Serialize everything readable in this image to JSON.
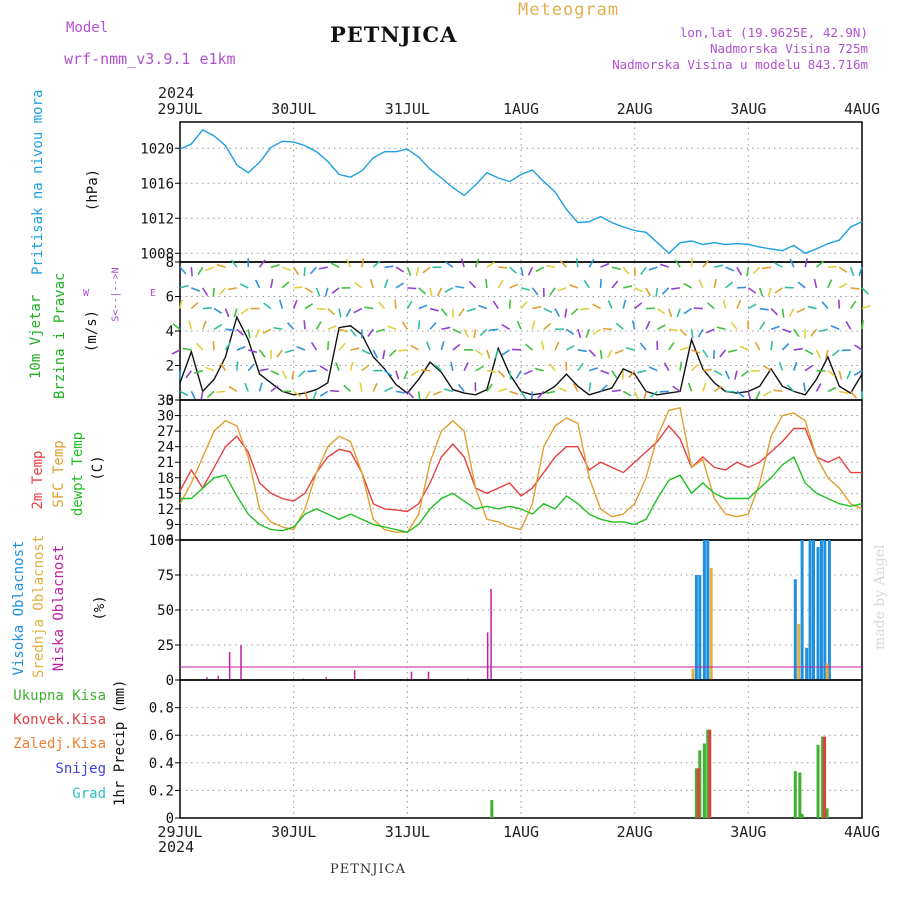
{
  "header": {
    "model_label": "Model",
    "model_name": "wrf-nmm_v3.9.1  e1km",
    "station": "PETNJICA",
    "meteogram": "Meteogram",
    "lonlat": "lon,lat (19.9625E, 42.9N)",
    "altitude": "Nadmorska Visina 725m",
    "model_altitude": "Nadmorska Visina u modelu 843.716m",
    "year_top": "2024",
    "year_bottom": "2024",
    "footer_station": "PETNJICA",
    "credit": "made by Angel"
  },
  "colors": {
    "pressure": "#1ea0e0",
    "temp2m": "#e84040",
    "sfc": "#e0a030",
    "dew": "#20c020",
    "high_cloud": "#1e90e0",
    "mid_cloud": "#e0b040",
    "low_cloud": "#c020a0",
    "total_precip": "#40b030",
    "conv_precip": "#e04040",
    "label_purple": "#b050d0",
    "label_orange": "#e0b050"
  },
  "x_axis": {
    "ticks": [
      "29JUL",
      "30JUL",
      "31JUL",
      "1AUG",
      "2AUG",
      "3AUG",
      "4AUG"
    ]
  },
  "panels": {
    "pressure": {
      "label": "Pritisak na nivou mora",
      "unit": "(hPa)"
    },
    "wind": {
      "label1": "10m Vjetar",
      "label2": "Brzina i Pravac",
      "unit": "(m/s)",
      "compass_w": "W",
      "compass_e": "E",
      "compass_ns": "S<--|-->N"
    },
    "temp": {
      "label_2m": "2m Temp",
      "label_sfc": "SFC Temp",
      "label_dew": "dewpt Temp",
      "unit": "(C)"
    },
    "cloud": {
      "label_high": "Visoka Oblacnost",
      "label_mid": "Srednja Oblacnost",
      "label_low": "Niska Oblacnost",
      "unit": "(%)"
    },
    "precip": {
      "legend": [
        "Ukupna Kisa",
        "Konvek.Kisa",
        "Zaledj.Kisa",
        "Snijeg",
        "Grad"
      ],
      "unit": "1hr Precip (mm)"
    }
  },
  "chart_data": [
    {
      "type": "line",
      "title": "Pritisak na nivou mora",
      "ylabel": "(hPa)",
      "ylim": [
        1007,
        1023
      ],
      "yticks": [
        1008,
        1012,
        1016,
        1020
      ],
      "x": [
        0,
        0.1,
        0.2,
        0.3,
        0.4,
        0.5,
        0.6,
        0.7,
        0.8,
        0.9,
        1.0,
        1.1,
        1.2,
        1.3,
        1.4,
        1.5,
        1.6,
        1.7,
        1.8,
        1.9,
        2.0,
        2.1,
        2.2,
        2.3,
        2.4,
        2.5,
        2.6,
        2.7,
        2.8,
        2.9,
        3.0,
        3.1,
        3.2,
        3.3,
        3.4,
        3.5,
        3.6,
        3.7,
        3.8,
        3.9,
        4.0,
        4.1,
        4.2,
        4.3,
        4.4,
        4.5,
        4.6,
        4.7,
        4.8,
        4.9,
        5.0,
        5.1,
        5.2,
        5.3,
        5.4,
        5.5,
        5.6,
        5.7,
        5.8,
        5.9,
        6.0
      ],
      "series": [
        {
          "values": [
            1019.9,
            1020.5,
            1022.1,
            1021.4,
            1020.3,
            1018.1,
            1017.2,
            1018.4,
            1020.1,
            1020.8,
            1020.7,
            1020.3,
            1019.6,
            1018.5,
            1017.0,
            1016.7,
            1017.4,
            1018.9,
            1019.6,
            1019.6,
            1019.9,
            1019.0,
            1017.6,
            1016.6,
            1015.5,
            1014.6,
            1015.8,
            1017.2,
            1016.6,
            1016.2,
            1017.0,
            1017.5,
            1016.2,
            1015.0,
            1013.0,
            1011.5,
            1011.6,
            1012.2,
            1011.5,
            1011.0,
            1010.6,
            1010.4,
            1009.2,
            1008.0,
            1009.2,
            1009.4,
            1009.0,
            1009.2,
            1009.0,
            1009.1,
            1009.0,
            1008.7,
            1008.5,
            1008.3,
            1008.9,
            1008.0,
            1008.5,
            1009.1,
            1009.5,
            1011.0,
            1011.6
          ]
        }
      ]
    },
    {
      "type": "line",
      "title": "10m Vjetar Brzina i Pravac",
      "ylabel": "(m/s)",
      "ylim": [
        0,
        8
      ],
      "yticks": [
        0,
        2,
        4,
        6,
        8
      ],
      "x": [
        0,
        0.1,
        0.2,
        0.3,
        0.4,
        0.5,
        0.6,
        0.7,
        0.8,
        0.9,
        1.0,
        1.1,
        1.2,
        1.3,
        1.4,
        1.5,
        1.6,
        1.7,
        1.8,
        1.9,
        2.0,
        2.1,
        2.2,
        2.3,
        2.4,
        2.5,
        2.6,
        2.7,
        2.8,
        2.9,
        3.0,
        3.1,
        3.2,
        3.3,
        3.4,
        3.5,
        3.6,
        3.7,
        3.8,
        3.9,
        4.0,
        4.1,
        4.2,
        4.3,
        4.4,
        4.5,
        4.6,
        4.7,
        4.8,
        4.9,
        5.0,
        5.1,
        5.2,
        5.3,
        5.4,
        5.5,
        5.6,
        5.7,
        5.8,
        5.9,
        6.0
      ],
      "series": [
        {
          "values": [
            1.0,
            2.8,
            0.5,
            1.2,
            2.5,
            4.8,
            3.5,
            1.5,
            1.0,
            0.5,
            0.3,
            0.4,
            0.6,
            1.0,
            4.2,
            4.3,
            3.8,
            2.5,
            1.8,
            0.9,
            0.4,
            1.2,
            2.2,
            1.6,
            0.6,
            0.4,
            0.3,
            0.6,
            3.0,
            1.5,
            0.5,
            0.3,
            0.4,
            0.8,
            1.5,
            0.8,
            0.3,
            0.5,
            0.7,
            1.8,
            1.5,
            0.5,
            0.3,
            0.4,
            0.5,
            3.5,
            1.8,
            1.0,
            0.5,
            0.4,
            0.5,
            0.8,
            1.8,
            0.8,
            0.5,
            0.3,
            1.2,
            2.5,
            0.8,
            0.4,
            1.5
          ]
        }
      ]
    },
    {
      "type": "line",
      "title": "2m Temp / SFC Temp / dewpt Temp",
      "ylabel": "(C)",
      "ylim": [
        6,
        33
      ],
      "yticks": [
        6,
        9,
        12,
        15,
        18,
        21,
        24,
        27,
        30,
        33
      ],
      "x": [
        0,
        0.1,
        0.2,
        0.3,
        0.4,
        0.5,
        0.6,
        0.7,
        0.8,
        0.9,
        1.0,
        1.1,
        1.2,
        1.3,
        1.4,
        1.5,
        1.6,
        1.7,
        1.8,
        1.9,
        2.0,
        2.1,
        2.2,
        2.3,
        2.4,
        2.5,
        2.6,
        2.7,
        2.8,
        2.9,
        3.0,
        3.1,
        3.2,
        3.3,
        3.4,
        3.5,
        3.6,
        3.7,
        3.8,
        3.9,
        4.0,
        4.1,
        4.2,
        4.3,
        4.4,
        4.5,
        4.6,
        4.7,
        4.8,
        4.9,
        5.0,
        5.1,
        5.2,
        5.3,
        5.4,
        5.5,
        5.6,
        5.7,
        5.8,
        5.9,
        6.0
      ],
      "series": [
        {
          "name": "2m Temp",
          "values": [
            15.5,
            19.5,
            16.0,
            20.0,
            24.0,
            26.0,
            23.0,
            17.0,
            15.0,
            14.0,
            13.5,
            15.0,
            19.0,
            22.0,
            23.5,
            23.0,
            19.0,
            13.0,
            12.0,
            11.8,
            11.5,
            13.0,
            17.0,
            22.0,
            24.5,
            22.0,
            16.0,
            15.0,
            16.0,
            17.0,
            14.5,
            16.0,
            19.0,
            22.0,
            24.0,
            24.0,
            19.5,
            21.0,
            20.0,
            19.0,
            21.0,
            23.0,
            25.0,
            28.0,
            25.5,
            20.0,
            22.0,
            20.0,
            19.5,
            21.0,
            20.0,
            21.0,
            23.0,
            25.0,
            27.5,
            27.5,
            22.0,
            21.0,
            22.0,
            19.0,
            19.0
          ]
        },
        {
          "name": "SFC Temp",
          "values": [
            13.0,
            17.0,
            22.0,
            27.0,
            29.0,
            28.0,
            22.0,
            12.0,
            9.5,
            8.5,
            8.0,
            12.0,
            19.0,
            24.0,
            26.0,
            25.0,
            19.0,
            10.0,
            8.0,
            7.5,
            7.5,
            11.0,
            21.0,
            27.0,
            29.0,
            27.0,
            16.0,
            10.0,
            9.5,
            8.5,
            8.0,
            13.0,
            24.0,
            28.0,
            29.5,
            28.5,
            18.0,
            12.0,
            10.5,
            11.0,
            13.0,
            18.0,
            26.0,
            31.0,
            31.5,
            20.0,
            21.5,
            14.0,
            11.0,
            10.5,
            11.0,
            17.0,
            26.0,
            30.0,
            30.5,
            29.0,
            22.0,
            18.0,
            16.0,
            13.0,
            12.0
          ]
        },
        {
          "name": "dewpt Temp",
          "values": [
            14.0,
            14.0,
            16.0,
            18.0,
            18.5,
            14.5,
            11.0,
            9.0,
            8.0,
            7.8,
            8.5,
            11.0,
            12.0,
            11.0,
            10.0,
            11.0,
            10.0,
            9.0,
            8.5,
            8.0,
            7.5,
            9.0,
            12.0,
            14.0,
            15.0,
            13.5,
            12.0,
            12.5,
            12.0,
            12.5,
            12.0,
            11.0,
            13.0,
            12.0,
            14.5,
            13.0,
            11.0,
            10.0,
            9.5,
            9.5,
            9.0,
            10.0,
            14.0,
            17.5,
            18.5,
            15.0,
            17.0,
            15.0,
            14.0,
            14.0,
            14.0,
            16.0,
            18.0,
            20.5,
            22.0,
            17.0,
            15.0,
            14.0,
            13.0,
            12.5,
            13.0
          ]
        }
      ]
    },
    {
      "type": "bar",
      "title": "Oblacnost",
      "ylabel": "(%)",
      "ylim": [
        0,
        100
      ],
      "yticks": [
        0,
        25,
        50,
        75,
        100
      ],
      "series": [
        {
          "name": "Visoka Oblacnost",
          "x": [
            4.53,
            4.56,
            4.6,
            4.63,
            5.4,
            5.46,
            5.5,
            5.53,
            5.56,
            5.6,
            5.63,
            5.66,
            5.7
          ],
          "values": [
            75,
            75,
            100,
            100,
            72,
            100,
            23,
            100,
            100,
            95,
            100,
            100,
            100
          ]
        },
        {
          "name": "Srednja Oblacnost",
          "x": [
            4.5,
            4.66,
            5.43,
            5.68
          ],
          "values": [
            8,
            80,
            40,
            12
          ]
        },
        {
          "name": "Niska Oblacnost",
          "x": [
            0.23,
            0.33,
            0.43,
            0.53,
            1.08,
            1.28,
            1.53,
            2.03,
            2.18,
            2.53,
            2.7,
            2.73
          ],
          "values": [
            2,
            3,
            20,
            25,
            1,
            2,
            7,
            6,
            6,
            1,
            34,
            65
          ]
        }
      ]
    },
    {
      "type": "bar",
      "title": "1hr Precip",
      "ylabel": "1hr Precip (mm)",
      "ylim": [
        0,
        1.0
      ],
      "yticks": [
        0,
        0.2,
        0.4,
        0.6,
        0.8
      ],
      "series": [
        {
          "name": "Ukupna Kisa",
          "x": [
            2.73,
            4.53,
            4.56,
            4.6,
            4.63,
            5.4,
            5.44,
            5.46,
            5.6,
            5.64,
            5.68
          ],
          "values": [
            0.13,
            0.36,
            0.49,
            0.54,
            0.64,
            0.34,
            0.33,
            0.03,
            0.53,
            0.59,
            0.07
          ]
        },
        {
          "name": "Konvek.Kisa",
          "x": [
            4.53,
            4.63,
            5.64
          ],
          "values": [
            0.36,
            0.64,
            0.59
          ]
        }
      ]
    }
  ]
}
